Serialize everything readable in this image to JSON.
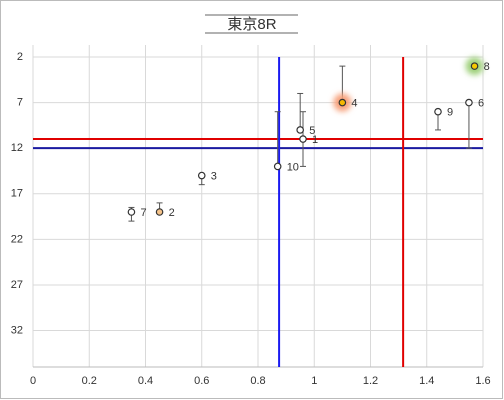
{
  "chart_data": {
    "type": "scatter",
    "title": "東京8R",
    "labels": [
      "1",
      "2",
      "3",
      "4",
      "5",
      "6",
      "7",
      "8",
      "9",
      "10"
    ],
    "x": [
      0.96,
      0.45,
      0.6,
      1.1,
      0.95,
      1.55,
      0.35,
      1.57,
      1.44,
      0.87
    ],
    "values": [
      11,
      19,
      15,
      7,
      10,
      7,
      19,
      3,
      8,
      14
    ],
    "err_low": [
      8,
      18,
      15,
      3,
      6,
      7,
      18.5,
      3,
      8,
      8
    ],
    "err_high": [
      14,
      19,
      16,
      7,
      10,
      12,
      20,
      3,
      10,
      14
    ],
    "point_fills": [
      "#ffffff",
      "#f5c38a",
      "#ffffff",
      "#f5b800",
      "#ffffff",
      "#ffffff",
      "#ffffff",
      "#f5c800",
      "#ffffff",
      "#ffffff"
    ],
    "glow_colors": [
      null,
      null,
      null,
      "#f7a07a",
      null,
      null,
      null,
      "#9fd07a",
      null,
      null
    ],
    "marker_color": "#333333",
    "errorbar_color": "#555555",
    "xlim": [
      0,
      1.6
    ],
    "xticks": [
      0,
      0.2,
      0.4,
      0.6,
      0.8,
      1,
      1.2,
      1.4,
      1.6
    ],
    "ylim": [
      2,
      36
    ],
    "y_reversed": true,
    "yticks": [
      2,
      7,
      12,
      17,
      22,
      27,
      32
    ],
    "grid": true,
    "hlines": [
      {
        "value": 11,
        "color": "#e00000"
      },
      {
        "value": 12,
        "color": "#1a1aa0"
      }
    ],
    "vlines": [
      {
        "value": 0.875,
        "color": "#1a1af0"
      },
      {
        "value": 1.316,
        "color": "#e00000"
      }
    ]
  }
}
